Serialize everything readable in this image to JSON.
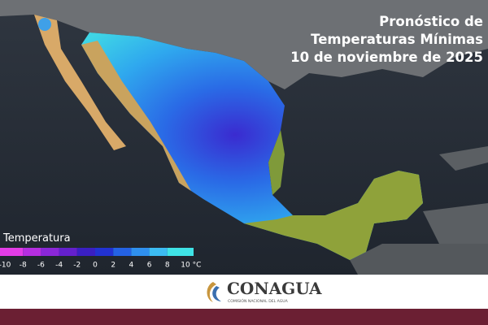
{
  "header": {
    "title_lines": [
      "Pronóstico de",
      "Temperaturas Mínimas",
      "10 de noviembre de 2025"
    ]
  },
  "legend": {
    "title": "Temperatura",
    "ticks": [
      -10,
      -8,
      -6,
      -4,
      -2,
      0,
      2,
      4,
      6,
      8,
      10
    ],
    "unit": "°C",
    "colors": [
      "#e23ce6",
      "#b52ee0",
      "#8b27d8",
      "#6420cc",
      "#3a1fc2",
      "#2232d2",
      "#2462e4",
      "#2f90ee",
      "#3cbcf2",
      "#3fe3e6"
    ]
  },
  "footer": {
    "logo": "CONAGUA",
    "subtitle": "COMISIÓN NACIONAL DEL AGUA"
  }
}
